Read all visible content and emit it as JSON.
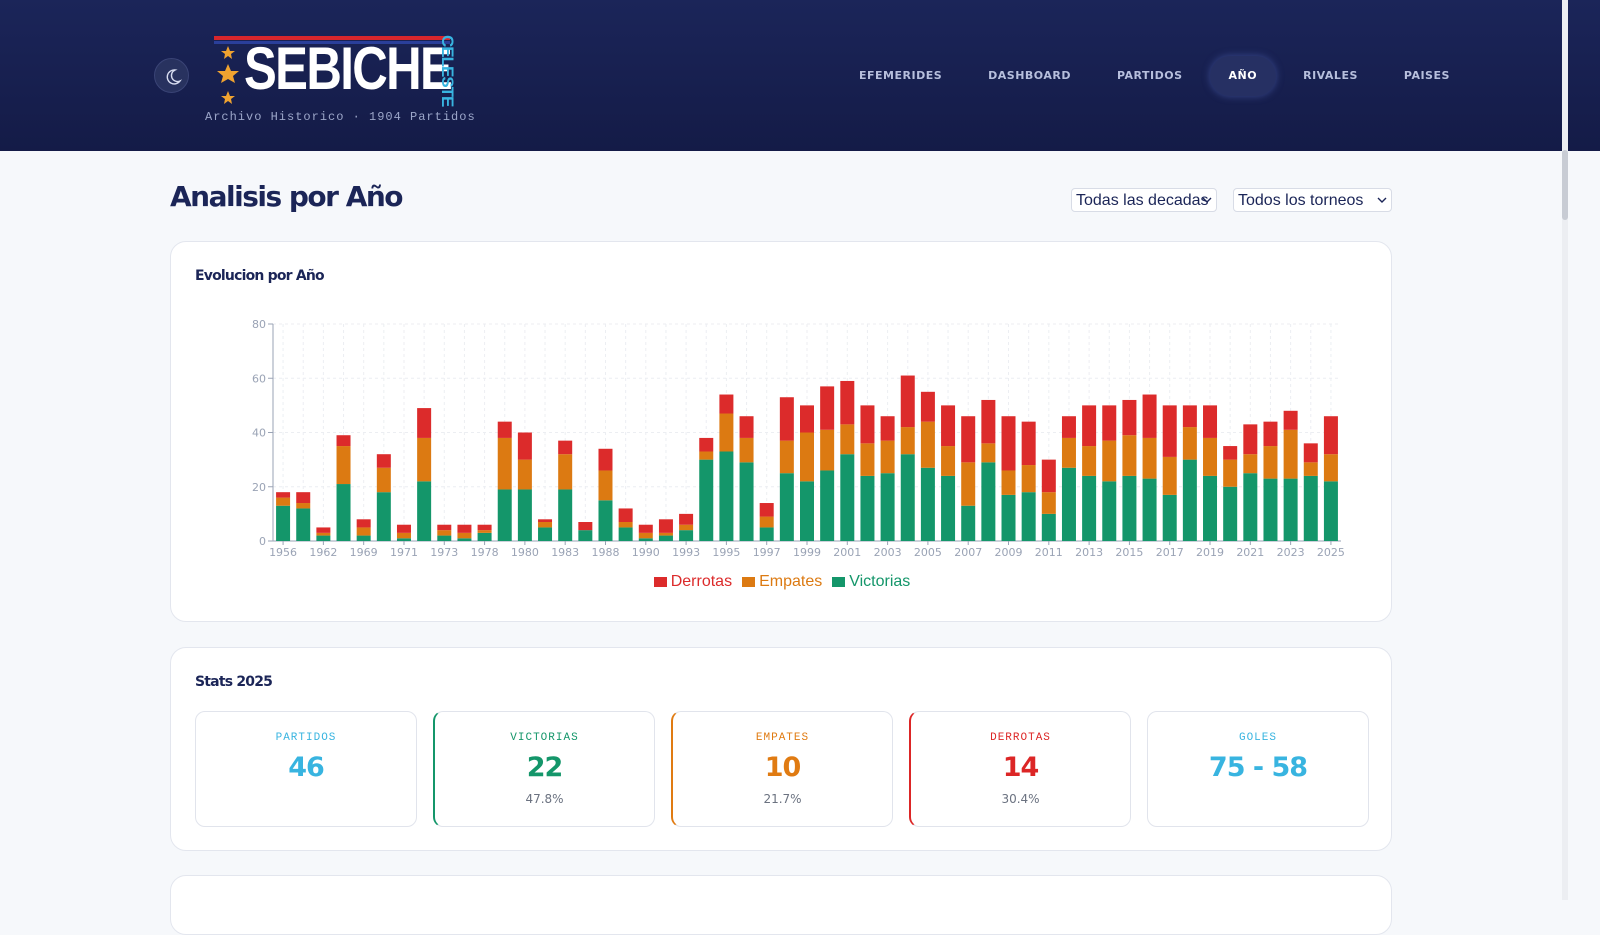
{
  "header": {
    "logo_main": "SEBICHE",
    "logo_side": "CELESTE",
    "subtitle": "Archivo Historico · 1904 Partidos",
    "nav": [
      "EFEMERIDES",
      "DASHBOARD",
      "PARTIDOS",
      "AÑO",
      "RIVALES",
      "PAISES"
    ]
  },
  "page_title": "Analisis por Año",
  "filters": [
    "Todas las decadas",
    "Todos los torneos"
  ],
  "chart_data": {
    "type": "bar",
    "stacked": true,
    "title": "Evolucion por Año",
    "categories": [
      "1956",
      null,
      "1962",
      null,
      "1969",
      null,
      "1971",
      null,
      "1973",
      null,
      "1978",
      null,
      "1980",
      null,
      "1983",
      null,
      "1988",
      null,
      "1990",
      null,
      "1993",
      null,
      "1995",
      null,
      "1997",
      null,
      "1999",
      null,
      "2001",
      null,
      "2003",
      null,
      "2005",
      null,
      "2007",
      null,
      "2009",
      null,
      "2011",
      null,
      "2013",
      null,
      "2015",
      null,
      "2017",
      null,
      "2019",
      null,
      "2021",
      null,
      "2023",
      null,
      "2025"
    ],
    "series": [
      {
        "name": "Derrotas",
        "color": "#dc2b2b",
        "values": [
          2,
          4,
          2,
          4,
          3,
          5,
          3,
          11,
          2,
          3,
          2,
          6,
          10,
          1,
          5,
          3,
          8,
          5,
          3,
          5,
          4,
          5,
          7,
          8,
          5,
          16,
          10,
          16,
          16,
          14,
          9,
          19,
          11,
          15,
          17,
          16,
          20,
          16,
          12,
          8,
          15,
          13,
          13,
          16,
          19,
          8,
          12,
          5,
          11,
          9,
          7,
          7,
          14
        ]
      },
      {
        "name": "Empates",
        "color": "#dc7a12",
        "values": [
          3,
          2,
          1,
          14,
          3,
          9,
          2,
          16,
          2,
          2,
          1,
          19,
          11,
          2,
          13,
          0,
          11,
          2,
          2,
          1,
          2,
          3,
          14,
          9,
          4,
          12,
          18,
          15,
          11,
          12,
          12,
          10,
          17,
          11,
          16,
          7,
          9,
          10,
          8,
          11,
          11,
          15,
          15,
          15,
          14,
          12,
          14,
          10,
          7,
          12,
          18,
          5,
          10
        ]
      },
      {
        "name": "Victorias",
        "color": "#14966a",
        "values": [
          13,
          12,
          2,
          21,
          2,
          18,
          1,
          22,
          2,
          1,
          3,
          19,
          19,
          5,
          19,
          4,
          15,
          5,
          1,
          2,
          4,
          30,
          33,
          29,
          5,
          25,
          22,
          26,
          32,
          24,
          25,
          32,
          27,
          24,
          13,
          29,
          17,
          18,
          10,
          27,
          24,
          22,
          24,
          23,
          17,
          30,
          24,
          20,
          25,
          23,
          23,
          24,
          22
        ]
      }
    ],
    "ylim": [
      0,
      80
    ],
    "yticks": [
      0,
      20,
      40,
      60,
      80
    ],
    "grid": true,
    "legend": "bottom"
  },
  "stats": {
    "title": "Stats 2025",
    "cards": [
      {
        "label": "PARTIDOS",
        "value": 46,
        "color": "#38b4e0"
      },
      {
        "label": "VICTORIAS",
        "value": 22,
        "percent": "47.8%",
        "color": "#14966a"
      },
      {
        "label": "EMPATES",
        "value": 10,
        "percent": "21.7%",
        "color": "#e07b12"
      },
      {
        "label": "DERROTAS",
        "value": 14,
        "percent": "30.4%",
        "color": "#dc2626"
      },
      {
        "label": "GOLES",
        "value": "75 - 58",
        "color": "#38b4e0"
      }
    ]
  }
}
